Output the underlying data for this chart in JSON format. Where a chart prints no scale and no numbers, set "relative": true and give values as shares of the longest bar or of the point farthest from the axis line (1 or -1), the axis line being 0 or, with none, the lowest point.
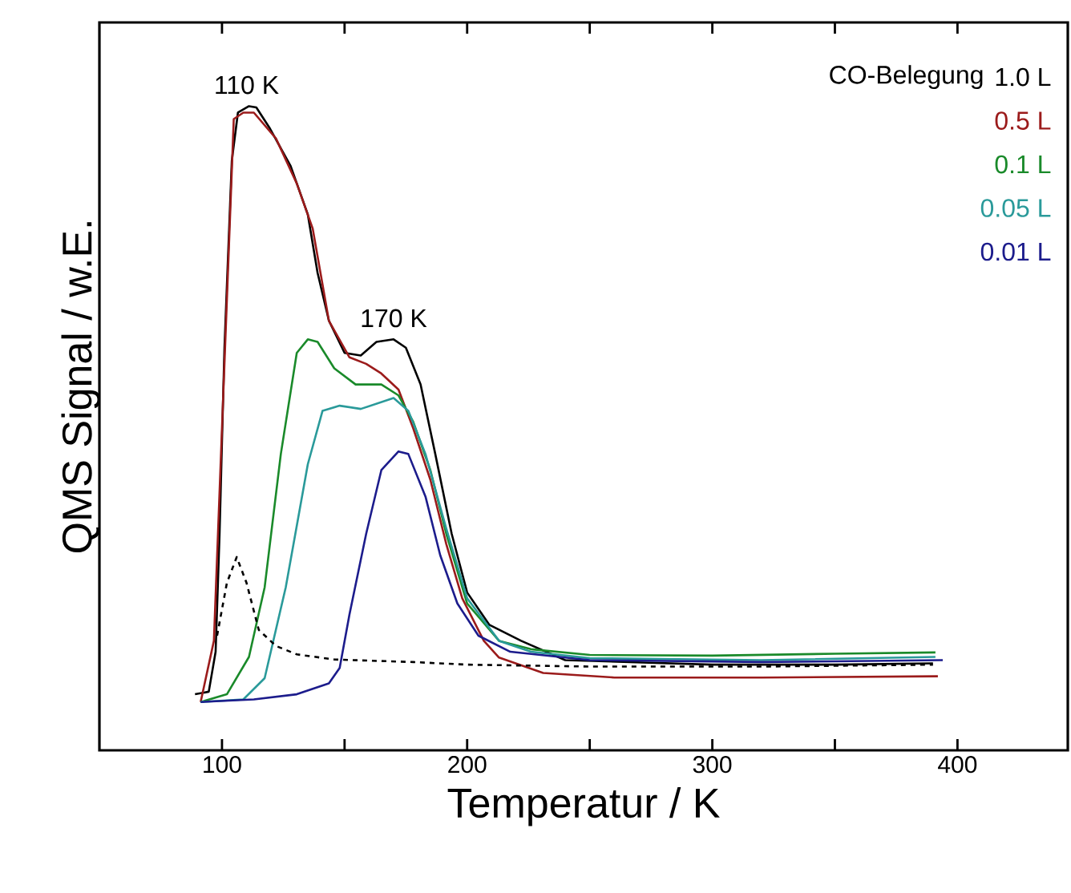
{
  "chart_data": {
    "type": "line",
    "xlabel": "Temperatur / K",
    "ylabel": "QMS Signal / w.E.",
    "legend_title": "CO-Belegung",
    "legend": "top right",
    "relative": true,
    "xlim": [
      50,
      445
    ],
    "xticks": [
      100,
      {
        "value": 150,
        "label": null
      },
      200,
      {
        "value": 250,
        "label": null
      },
      300,
      {
        "value": 350,
        "label": null
      },
      400
    ],
    "annotations": [
      {
        "text": "110 K",
        "x": 110,
        "y": 1.0
      },
      {
        "text": "170 K",
        "x": 170,
        "y": 0.638
      }
    ],
    "series": [
      {
        "name": "1.0 L",
        "color": "#000000",
        "x": [
          89,
          94.6,
          97.4,
          99,
          101,
          104,
          106.5,
          111,
          114,
          119.6,
          128,
          135,
          139,
          143.6,
          150,
          156.6,
          163,
          170,
          175,
          181,
          187,
          193.7,
          200,
          209,
          222,
          240,
          300,
          350,
          390
        ],
        "values": [
          0.087,
          0.091,
          0.153,
          0.335,
          0.625,
          0.915,
          0.99,
          1.0,
          0.998,
          0.965,
          0.907,
          0.832,
          0.741,
          0.667,
          0.617,
          0.613,
          0.634,
          0.638,
          0.625,
          0.568,
          0.46,
          0.336,
          0.245,
          0.195,
          0.17,
          0.14,
          0.133,
          0.133,
          0.135
        ]
      },
      {
        "name": "0.5 L",
        "color": "#9b1b1b",
        "x": [
          91.3,
          96.7,
          100,
          104.8,
          108.7,
          113,
          122,
          130.5,
          137,
          143.6,
          152,
          158.8,
          165,
          172,
          178,
          185,
          191.5,
          198,
          206.8,
          213,
          231,
          260,
          320,
          392
        ],
        "values": [
          0.075,
          0.17,
          0.5,
          0.98,
          0.99,
          0.99,
          0.95,
          0.88,
          0.81,
          0.667,
          0.61,
          0.6,
          0.585,
          0.56,
          0.5,
          0.42,
          0.32,
          0.236,
          0.17,
          0.144,
          0.12,
          0.113,
          0.113,
          0.115
        ]
      },
      {
        "name": "0.1 L",
        "color": "#1a8a2a",
        "x": [
          91.3,
          102,
          111,
          117.4,
          124,
          130.5,
          135,
          139,
          145.8,
          154.5,
          165,
          172,
          178,
          185,
          191.5,
          200,
          213,
          226,
          250,
          300,
          350,
          391
        ],
        "values": [
          0.075,
          0.087,
          0.145,
          0.253,
          0.46,
          0.617,
          0.638,
          0.634,
          0.593,
          0.568,
          0.568,
          0.551,
          0.51,
          0.435,
          0.336,
          0.228,
          0.17,
          0.157,
          0.148,
          0.147,
          0.15,
          0.152
        ]
      },
      {
        "name": "0.05 L",
        "color": "#2a9a9a",
        "x": [
          91.3,
          108.7,
          117.4,
          126,
          135,
          141,
          148,
          156.6,
          170,
          176,
          183,
          191.5,
          200,
          213,
          226,
          250,
          320,
          391
        ],
        "values": [
          0.075,
          0.079,
          0.112,
          0.253,
          0.444,
          0.527,
          0.535,
          0.53,
          0.547,
          0.527,
          0.46,
          0.344,
          0.236,
          0.17,
          0.153,
          0.143,
          0.14,
          0.145
        ]
      },
      {
        "name": "0.01 L",
        "color": "#1c1c8c",
        "x": [
          91.3,
          113,
          130.5,
          143.6,
          148,
          152,
          158.8,
          165,
          172,
          176,
          183,
          189,
          196,
          204.6,
          217.6,
          250,
          320,
          394
        ],
        "values": [
          0.075,
          0.079,
          0.087,
          0.104,
          0.128,
          0.211,
          0.336,
          0.435,
          0.464,
          0.46,
          0.394,
          0.303,
          0.228,
          0.178,
          0.153,
          0.14,
          0.137,
          0.14
        ]
      },
      {
        "color": "#000000",
        "line_style": "dashed",
        "x": [
          98,
          102,
          106,
          110,
          115,
          122,
          130.5,
          145.8,
          178,
          200,
          250,
          320,
          390
        ],
        "values": [
          0.178,
          0.26,
          0.3,
          0.26,
          0.187,
          0.162,
          0.149,
          0.141,
          0.137,
          0.133,
          0.13,
          0.13,
          0.133
        ]
      }
    ]
  }
}
